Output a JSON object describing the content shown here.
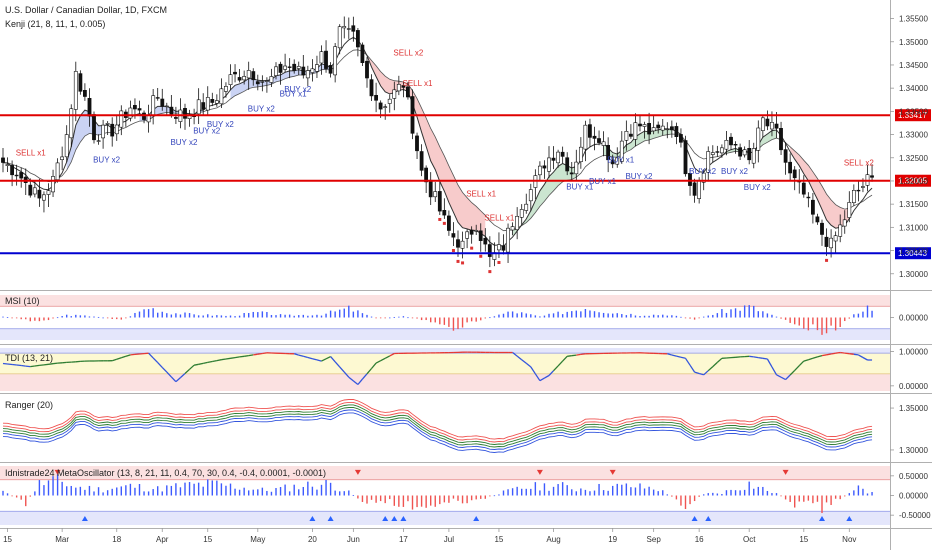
{
  "header": {
    "title": "U.S. Dollar / Canadian Dollar, 1D, FXCM",
    "indicator": "Kenji (21, 8, 11, 1, 0.005)"
  },
  "colors": {
    "up": "#26a69a",
    "down": "#ef5350",
    "resistance": "#e00000",
    "support": "#0000d0",
    "buy_label": "#3344bb",
    "sell_label": "#dd3333",
    "dark_line": "#333333",
    "msi_up": "#3d5afe",
    "msi_down": "#ef5350",
    "tdi_blue": "#3355dd",
    "tdi_red": "#e53935",
    "tdi_green": "#2e7d32"
  },
  "chart_data": [
    {
      "panel": "price",
      "type": "candlestick",
      "title": "U.S. Dollar / Canadian Dollar, 1D, FXCM",
      "ylim": [
        1.2965,
        1.359
      ],
      "yticks": [
        "1.35500",
        "1.35000",
        "1.34500",
        "1.34000",
        "1.33500",
        "1.33000",
        "1.32500",
        "1.32000",
        "1.31500",
        "1.31000",
        "1.30500",
        "1.30000"
      ],
      "ytick_values": [
        1.355,
        1.35,
        1.345,
        1.34,
        1.335,
        1.33,
        1.325,
        1.32,
        1.315,
        1.31,
        1.305,
        1.3
      ],
      "xticks": [
        "15",
        "Mar",
        "18",
        "Apr",
        "15",
        "May",
        "20",
        "Jun",
        "17",
        "Jul",
        "15",
        "Aug",
        "19",
        "Sep",
        "16",
        "Oct",
        "15",
        "Nov"
      ],
      "xtick_bars": [
        1,
        13,
        25,
        35,
        45,
        56,
        68,
        77,
        88,
        98,
        109,
        121,
        134,
        143,
        153,
        164,
        176,
        186
      ],
      "horizontal_lines": [
        {
          "value": 1.33417,
          "label": "1.33417",
          "color": "#e00000"
        },
        {
          "value": 1.32005,
          "label": "1.32005",
          "color": "#e00000"
        },
        {
          "value": 1.30443,
          "label": "1.30443",
          "color": "#0000d0"
        }
      ],
      "close_anchors": [
        [
          0,
          1.324
        ],
        [
          3,
          1.322
        ],
        [
          8,
          1.316
        ],
        [
          11,
          1.32
        ],
        [
          14,
          1.33
        ],
        [
          16,
          1.343
        ],
        [
          18,
          1.338
        ],
        [
          20,
          1.33
        ],
        [
          24,
          1.331
        ],
        [
          28,
          1.336
        ],
        [
          31,
          1.334
        ],
        [
          34,
          1.338
        ],
        [
          37,
          1.335
        ],
        [
          40,
          1.334
        ],
        [
          43,
          1.336
        ],
        [
          46,
          1.337
        ],
        [
          50,
          1.342
        ],
        [
          54,
          1.344
        ],
        [
          58,
          1.341
        ],
        [
          62,
          1.345
        ],
        [
          66,
          1.343
        ],
        [
          70,
          1.347
        ],
        [
          72,
          1.344
        ],
        [
          74,
          1.352
        ],
        [
          77,
          1.351
        ],
        [
          80,
          1.342
        ],
        [
          83,
          1.336
        ],
        [
          86,
          1.339
        ],
        [
          88,
          1.341
        ],
        [
          90,
          1.332
        ],
        [
          92,
          1.322
        ],
        [
          95,
          1.316
        ],
        [
          98,
          1.309
        ],
        [
          101,
          1.306
        ],
        [
          104,
          1.311
        ],
        [
          107,
          1.303
        ],
        [
          110,
          1.306
        ],
        [
          113,
          1.314
        ],
        [
          116,
          1.318
        ],
        [
          119,
          1.324
        ],
        [
          122,
          1.327
        ],
        [
          125,
          1.322
        ],
        [
          128,
          1.331
        ],
        [
          131,
          1.33
        ],
        [
          134,
          1.324
        ],
        [
          137,
          1.331
        ],
        [
          140,
          1.332
        ],
        [
          143,
          1.33
        ],
        [
          146,
          1.332
        ],
        [
          148,
          1.331
        ],
        [
          150,
          1.323
        ],
        [
          152,
          1.318
        ],
        [
          155,
          1.326
        ],
        [
          158,
          1.327
        ],
        [
          161,
          1.328
        ],
        [
          164,
          1.324
        ],
        [
          167,
          1.333
        ],
        [
          170,
          1.33
        ],
        [
          173,
          1.321
        ],
        [
          176,
          1.317
        ],
        [
          179,
          1.31
        ],
        [
          182,
          1.306
        ],
        [
          185,
          1.312
        ],
        [
          187,
          1.317
        ],
        [
          190,
          1.32
        ]
      ],
      "band_regions": [
        {
          "from_bar": 14,
          "to_bar": 22,
          "fill": "#b8c4f0"
        },
        {
          "from_bar": 30,
          "to_bar": 44,
          "fill": "#b8c4f0"
        },
        {
          "from_bar": 50,
          "to_bar": 72,
          "fill": "#b8c4f0"
        },
        {
          "from_bar": 79,
          "to_bar": 106,
          "fill": "#f4b9b9"
        },
        {
          "from_bar": 112,
          "to_bar": 126,
          "fill": "#b9dcc0"
        },
        {
          "from_bar": 132,
          "to_bar": 147,
          "fill": "#b9dcc0"
        },
        {
          "from_bar": 158,
          "to_bar": 170,
          "fill": "#b9dcc0"
        },
        {
          "from_bar": 173,
          "to_bar": 186,
          "fill": "#f4b9b9"
        }
      ],
      "signals": [
        {
          "text": "SELL x1",
          "bar": 5,
          "value": 1.3255,
          "type": "sell"
        },
        {
          "text": "BUY x2",
          "bar": 22,
          "value": 1.324,
          "type": "buy"
        },
        {
          "text": "BUY x2",
          "bar": 39,
          "value": 1.3278,
          "type": "buy"
        },
        {
          "text": "BUY x2",
          "bar": 44,
          "value": 1.3302,
          "type": "buy"
        },
        {
          "text": "BUY x2",
          "bar": 47,
          "value": 1.3316,
          "type": "buy"
        },
        {
          "text": "BUY x2",
          "bar": 56,
          "value": 1.335,
          "type": "buy"
        },
        {
          "text": "BUY x1",
          "bar": 63,
          "value": 1.3382,
          "type": "buy"
        },
        {
          "text": "BUY x2",
          "bar": 64,
          "value": 1.3392,
          "type": "buy"
        },
        {
          "text": "SELL x2",
          "bar": 88,
          "value": 1.347,
          "type": "sell"
        },
        {
          "text": "SELL x1",
          "bar": 90,
          "value": 1.3405,
          "type": "sell"
        },
        {
          "text": "SELL x1",
          "bar": 104,
          "value": 1.3167,
          "type": "sell"
        },
        {
          "text": "SELL x1",
          "bar": 108,
          "value": 1.3115,
          "type": "sell"
        },
        {
          "text": "BUY x1",
          "bar": 126,
          "value": 1.3182,
          "type": "buy"
        },
        {
          "text": "BUY x1",
          "bar": 131,
          "value": 1.3193,
          "type": "buy"
        },
        {
          "text": "BUY x1",
          "bar": 135,
          "value": 1.324,
          "type": "buy"
        },
        {
          "text": "BUY x2",
          "bar": 139,
          "value": 1.3204,
          "type": "buy"
        },
        {
          "text": "BUY x2",
          "bar": 153,
          "value": 1.3215,
          "type": "buy"
        },
        {
          "text": "BUY x2",
          "bar": 160,
          "value": 1.3215,
          "type": "buy"
        },
        {
          "text": "BUY x2",
          "bar": 165,
          "value": 1.318,
          "type": "buy"
        },
        {
          "text": "SELL x2",
          "bar": 187,
          "value": 1.3233,
          "type": "sell"
        }
      ]
    },
    {
      "panel": "msi",
      "type": "bar",
      "title": "MSI (10)",
      "ylim": [
        -1.0,
        1.0
      ],
      "yticks": [
        "0.00000"
      ],
      "ytick_values": [
        0
      ],
      "bands": [
        {
          "from": 0.5,
          "to": 1.0,
          "fill": "#fbe1e1"
        },
        {
          "from": -1.0,
          "to": -0.5,
          "fill": "#e4e6fb"
        }
      ],
      "anchors": [
        [
          0,
          0.05
        ],
        [
          8,
          -0.2
        ],
        [
          14,
          0.12
        ],
        [
          20,
          0.06
        ],
        [
          26,
          -0.12
        ],
        [
          32,
          0.5
        ],
        [
          36,
          0.25
        ],
        [
          42,
          0.15
        ],
        [
          50,
          0.08
        ],
        [
          56,
          0.25
        ],
        [
          62,
          0.1
        ],
        [
          70,
          0.15
        ],
        [
          76,
          0.45
        ],
        [
          82,
          -0.05
        ],
        [
          88,
          0.05
        ],
        [
          94,
          -0.2
        ],
        [
          98,
          -0.58
        ],
        [
          102,
          -0.3
        ],
        [
          106,
          -0.04
        ],
        [
          112,
          0.3
        ],
        [
          118,
          0.05
        ],
        [
          124,
          0.3
        ],
        [
          128,
          0.5
        ],
        [
          134,
          0.25
        ],
        [
          140,
          0.12
        ],
        [
          146,
          0.15
        ],
        [
          152,
          -0.1
        ],
        [
          158,
          0.3
        ],
        [
          164,
          0.55
        ],
        [
          168,
          0.2
        ],
        [
          174,
          -0.3
        ],
        [
          180,
          -0.65
        ],
        [
          184,
          -0.4
        ],
        [
          188,
          0.3
        ],
        [
          190,
          0.5
        ]
      ]
    },
    {
      "panel": "tdi",
      "type": "line",
      "title": "TDI (13, 21)",
      "ylim": [
        -0.15,
        1.1
      ],
      "yticks": [
        "1.00000",
        "0.00000"
      ],
      "ytick_values": [
        1.0,
        0.0
      ],
      "bands": [
        {
          "from": 0.95,
          "to": 1.1,
          "fill": "#e4e6fb"
        },
        {
          "from": 0.35,
          "to": 0.95,
          "fill": "#fdf9d2"
        },
        {
          "from": -0.15,
          "to": 0.35,
          "fill": "#fbe1e1"
        }
      ],
      "anchors": [
        [
          0,
          0.65
        ],
        [
          6,
          0.56
        ],
        [
          12,
          0.66
        ],
        [
          18,
          0.72
        ],
        [
          24,
          0.73
        ],
        [
          28,
          0.9
        ],
        [
          32,
          0.95
        ],
        [
          36,
          0.4
        ],
        [
          38,
          0.12
        ],
        [
          42,
          0.6
        ],
        [
          48,
          0.76
        ],
        [
          54,
          0.88
        ],
        [
          58,
          0.96
        ],
        [
          64,
          0.93
        ],
        [
          70,
          0.72
        ],
        [
          72,
          0.85
        ],
        [
          76,
          0.25
        ],
        [
          78,
          0.04
        ],
        [
          82,
          0.66
        ],
        [
          86,
          0.94
        ],
        [
          90,
          0.95
        ],
        [
          96,
          0.96
        ],
        [
          102,
          0.98
        ],
        [
          108,
          0.97
        ],
        [
          112,
          0.97
        ],
        [
          116,
          0.55
        ],
        [
          118,
          0.15
        ],
        [
          120,
          0.3
        ],
        [
          124,
          0.86
        ],
        [
          128,
          0.93
        ],
        [
          134,
          0.95
        ],
        [
          140,
          0.96
        ],
        [
          146,
          0.93
        ],
        [
          150,
          0.8
        ],
        [
          152,
          0.4
        ],
        [
          154,
          0.32
        ],
        [
          158,
          0.8
        ],
        [
          164,
          0.86
        ],
        [
          168,
          0.78
        ],
        [
          170,
          0.32
        ],
        [
          172,
          0.18
        ],
        [
          176,
          0.72
        ],
        [
          180,
          0.88
        ],
        [
          184,
          0.97
        ],
        [
          188,
          0.9
        ],
        [
          190,
          0.75
        ]
      ]
    },
    {
      "panel": "ranger",
      "type": "line",
      "title": "Ranger (20)",
      "ylim": [
        1.288,
        1.362
      ],
      "yticks": [
        "1.35000",
        "1.30000"
      ],
      "ytick_values": [
        1.35,
        1.3
      ],
      "offsets": [
        0.008,
        0.0045,
        0.0015,
        -0.0015,
        -0.0045,
        -0.008
      ],
      "offset_colors": [
        "#ef5350",
        "#ef5350",
        "#2e7d32",
        "#2e7d32",
        "#3355dd",
        "#3355dd"
      ]
    },
    {
      "panel": "metaoscillator",
      "type": "bar",
      "title": "Idnistrade24 MetaOscillator (13, 8, 21, 11, 0.4, 70, 30, 0.4, -0.4, 0.0001, -0.0001)",
      "ylim": [
        -0.75,
        0.75
      ],
      "yticks": [
        "0.50000",
        "0.00000",
        "-0.50000"
      ],
      "ytick_values": [
        0.5,
        0.0,
        -0.5
      ],
      "bands": [
        {
          "from": 0.4,
          "to": 0.75,
          "fill": "#fbe1e1"
        },
        {
          "from": -0.75,
          "to": -0.4,
          "fill": "#e4e6fb"
        }
      ],
      "anchors": [
        [
          0,
          0.12
        ],
        [
          5,
          -0.25
        ],
        [
          8,
          0.35
        ],
        [
          12,
          0.45
        ],
        [
          16,
          0.25
        ],
        [
          22,
          0.18
        ],
        [
          28,
          0.28
        ],
        [
          34,
          0.2
        ],
        [
          40,
          0.3
        ],
        [
          46,
          0.35
        ],
        [
          52,
          0.25
        ],
        [
          58,
          0.15
        ],
        [
          66,
          0.3
        ],
        [
          72,
          0.35
        ],
        [
          76,
          0.1
        ],
        [
          80,
          -0.25
        ],
        [
          84,
          -0.15
        ],
        [
          88,
          -0.3
        ],
        [
          94,
          -0.32
        ],
        [
          98,
          -0.15
        ],
        [
          102,
          -0.22
        ],
        [
          106,
          -0.08
        ],
        [
          110,
          0.1
        ],
        [
          114,
          0.22
        ],
        [
          118,
          0.28
        ],
        [
          122,
          0.3
        ],
        [
          126,
          0.2
        ],
        [
          132,
          0.25
        ],
        [
          138,
          0.28
        ],
        [
          144,
          0.2
        ],
        [
          150,
          -0.3
        ],
        [
          154,
          0.05
        ],
        [
          158,
          0.08
        ],
        [
          164,
          0.35
        ],
        [
          170,
          0.05
        ],
        [
          174,
          -0.25
        ],
        [
          180,
          -0.35
        ],
        [
          184,
          -0.1
        ],
        [
          188,
          0.2
        ],
        [
          190,
          0.12
        ]
      ],
      "up_triangles": [
        18,
        68,
        72,
        84,
        86,
        88,
        104,
        152,
        155,
        180,
        186
      ],
      "down_triangles": [
        12,
        78,
        118,
        134,
        172
      ]
    }
  ]
}
